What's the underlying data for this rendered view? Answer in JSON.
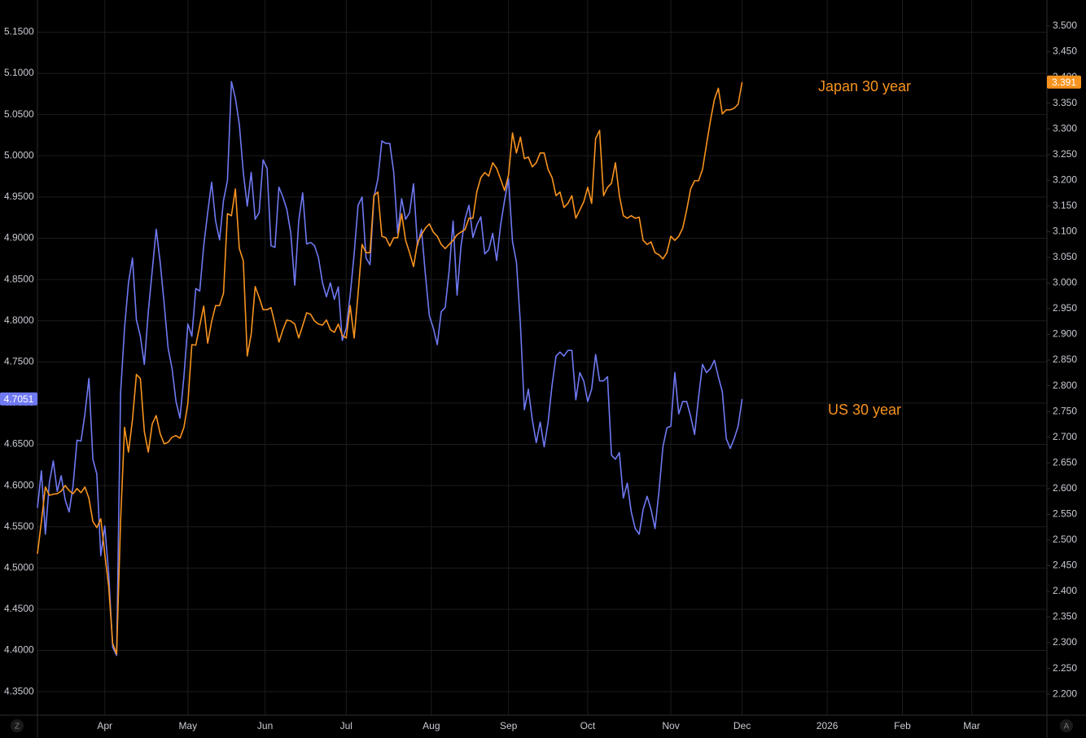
{
  "chart_data": {
    "type": "line",
    "xlim": [
      0,
      255
    ],
    "xticks": [
      {
        "value": 17,
        "label": "Apr"
      },
      {
        "value": 38,
        "label": "May"
      },
      {
        "value": 57.5,
        "label": "Jun"
      },
      {
        "value": 78,
        "label": "Jul"
      },
      {
        "value": 99.5,
        "label": "Aug"
      },
      {
        "value": 119,
        "label": "Sep"
      },
      {
        "value": 139,
        "label": "Oct"
      },
      {
        "value": 160,
        "label": "Nov"
      },
      {
        "value": 178,
        "label": "Dec"
      },
      {
        "value": 199.5,
        "label": "2026"
      },
      {
        "value": 218.5,
        "label": "Feb"
      },
      {
        "value": 236,
        "label": "Mar"
      }
    ],
    "ylim": [
      4.3215,
      5.189
    ],
    "yticks": [
      {
        "value": 4.35,
        "label": "4.3500"
      },
      {
        "value": 4.4,
        "label": "4.4000"
      },
      {
        "value": 4.45,
        "label": "4.4500"
      },
      {
        "value": 4.5,
        "label": "4.5000"
      },
      {
        "value": 4.55,
        "label": "4.5500"
      },
      {
        "value": 4.6,
        "label": "4.6000"
      },
      {
        "value": 4.65,
        "label": "4.6500"
      },
      {
        "value": 4.7,
        "label": "4.7000"
      },
      {
        "value": 4.75,
        "label": "4.7500"
      },
      {
        "value": 4.8,
        "label": "4.8000"
      },
      {
        "value": 4.85,
        "label": "4.8500"
      },
      {
        "value": 4.9,
        "label": "4.9000"
      },
      {
        "value": 4.95,
        "label": "4.9500"
      },
      {
        "value": 5.0,
        "label": "5.0000"
      },
      {
        "value": 5.05,
        "label": "5.0500"
      },
      {
        "value": 5.1,
        "label": "5.1000"
      },
      {
        "value": 5.15,
        "label": "5.1500"
      }
    ],
    "y2lim": [
      2.159,
      3.5507
    ],
    "y2ticks": [
      {
        "value": 2.2,
        "label": "2.200"
      },
      {
        "value": 2.25,
        "label": "2.250"
      },
      {
        "value": 2.3,
        "label": "2.300"
      },
      {
        "value": 2.35,
        "label": "2.350"
      },
      {
        "value": 2.4,
        "label": "2.400"
      },
      {
        "value": 2.45,
        "label": "2.450"
      },
      {
        "value": 2.5,
        "label": "2.500"
      },
      {
        "value": 2.55,
        "label": "2.550"
      },
      {
        "value": 2.6,
        "label": "2.600"
      },
      {
        "value": 2.65,
        "label": "2.650"
      },
      {
        "value": 2.7,
        "label": "2.700"
      },
      {
        "value": 2.75,
        "label": "2.750"
      },
      {
        "value": 2.8,
        "label": "2.800"
      },
      {
        "value": 2.85,
        "label": "2.850"
      },
      {
        "value": 2.9,
        "label": "2.900"
      },
      {
        "value": 2.95,
        "label": "2.950"
      },
      {
        "value": 3.0,
        "label": "3.000"
      },
      {
        "value": 3.05,
        "label": "3.050"
      },
      {
        "value": 3.1,
        "label": "3.100"
      },
      {
        "value": 3.15,
        "label": "3.150"
      },
      {
        "value": 3.2,
        "label": "3.200"
      },
      {
        "value": 3.25,
        "label": "3.250"
      },
      {
        "value": 3.3,
        "label": "3.300"
      },
      {
        "value": 3.35,
        "label": "3.350"
      },
      {
        "value": 3.4,
        "label": "3.400"
      },
      {
        "value": 3.45,
        "label": "3.450"
      },
      {
        "value": 3.5,
        "label": "3.500"
      }
    ],
    "grid": true,
    "annotation_color": "#f7931e",
    "series": [
      {
        "name": "US 30 year",
        "color": "#6f79f2",
        "axis": "y",
        "values": [
          4.573,
          4.618,
          4.541,
          4.603,
          4.63,
          4.593,
          4.612,
          4.583,
          4.568,
          4.6,
          4.655,
          4.654,
          4.687,
          4.73,
          4.632,
          4.614,
          4.515,
          4.551,
          4.493,
          4.404,
          4.394,
          4.712,
          4.791,
          4.846,
          4.876,
          4.801,
          4.781,
          4.747,
          4.811,
          4.861,
          4.911,
          4.871,
          4.821,
          4.767,
          4.742,
          4.702,
          4.682,
          4.732,
          4.796,
          4.781,
          4.839,
          4.836,
          4.891,
          4.931,
          4.968,
          4.921,
          4.898,
          4.946,
          4.97,
          5.09,
          5.07,
          5.038,
          4.98,
          4.939,
          4.98,
          4.923,
          4.931,
          4.995,
          4.985,
          4.891,
          4.889,
          4.962,
          4.95,
          4.935,
          4.906,
          4.843,
          4.921,
          4.955,
          4.893,
          4.895,
          4.891,
          4.876,
          4.846,
          4.829,
          4.846,
          4.826,
          4.841,
          4.776,
          4.791,
          4.831,
          4.881,
          4.94,
          4.95,
          4.876,
          4.868,
          4.95,
          4.972,
          5.018,
          5.015,
          5.015,
          4.98,
          4.906,
          4.948,
          4.923,
          4.931,
          4.966,
          4.891,
          4.911,
          4.856,
          4.806,
          4.791,
          4.771,
          4.811,
          4.816,
          4.861,
          4.921,
          4.831,
          4.891,
          4.923,
          4.94,
          4.901,
          4.916,
          4.926,
          4.881,
          4.886,
          4.906,
          4.873,
          4.916,
          4.946,
          4.972,
          4.896,
          4.871,
          4.796,
          4.692,
          4.717,
          4.68,
          4.652,
          4.677,
          4.647,
          4.677,
          4.722,
          4.757,
          4.762,
          4.757,
          4.764,
          4.764,
          4.704,
          4.737,
          4.727,
          4.702,
          4.717,
          4.759,
          4.727,
          4.727,
          4.732,
          4.637,
          4.632,
          4.64,
          4.585,
          4.603,
          4.568,
          4.548,
          4.541,
          4.571,
          4.587,
          4.571,
          4.548,
          4.593,
          4.647,
          4.67,
          4.672,
          4.737,
          4.687,
          4.702,
          4.702,
          4.684,
          4.662,
          4.707,
          4.747,
          4.737,
          4.742,
          4.752,
          4.732,
          4.714,
          4.657,
          4.645,
          4.657,
          4.672,
          4.7051
        ]
      },
      {
        "name": "Japan 30 year",
        "color": "#f7931e",
        "axis": "y2",
        "values": [
          2.473,
          2.536,
          2.603,
          2.587,
          2.589,
          2.59,
          2.595,
          2.606,
          2.596,
          2.59,
          2.6,
          2.592,
          2.603,
          2.581,
          2.536,
          2.524,
          2.541,
          2.473,
          2.409,
          2.299,
          2.278,
          2.536,
          2.719,
          2.671,
          2.734,
          2.822,
          2.814,
          2.711,
          2.671,
          2.726,
          2.742,
          2.707,
          2.687,
          2.69,
          2.7,
          2.703,
          2.698,
          2.719,
          2.766,
          2.88,
          2.879,
          2.917,
          2.955,
          2.883,
          2.925,
          2.956,
          2.956,
          2.98,
          3.135,
          3.131,
          3.183,
          3.067,
          3.043,
          2.858,
          2.901,
          2.993,
          2.972,
          2.948,
          2.948,
          2.952,
          2.92,
          2.885,
          2.909,
          2.928,
          2.926,
          2.92,
          2.893,
          2.917,
          2.942,
          2.939,
          2.926,
          2.92,
          2.918,
          2.928,
          2.909,
          2.904,
          2.92,
          2.898,
          2.893,
          2.956,
          2.893,
          2.98,
          3.075,
          3.059,
          3.059,
          3.17,
          3.177,
          3.091,
          3.088,
          3.072,
          3.088,
          3.088,
          3.135,
          3.083,
          3.059,
          3.032,
          3.078,
          3.094,
          3.107,
          3.115,
          3.099,
          3.091,
          3.075,
          3.067,
          3.075,
          3.083,
          3.094,
          3.099,
          3.104,
          3.126,
          3.126,
          3.178,
          3.205,
          3.215,
          3.208,
          3.234,
          3.223,
          3.202,
          3.18,
          3.21,
          3.292,
          3.253,
          3.284,
          3.242,
          3.245,
          3.226,
          3.234,
          3.253,
          3.253,
          3.221,
          3.205,
          3.17,
          3.177,
          3.147,
          3.155,
          3.17,
          3.126,
          3.142,
          3.158,
          3.186,
          3.155,
          3.281,
          3.297,
          3.17,
          3.186,
          3.194,
          3.234,
          3.17,
          3.131,
          3.126,
          3.131,
          3.126,
          3.128,
          3.083,
          3.075,
          3.08,
          3.059,
          3.055,
          3.047,
          3.059,
          3.091,
          3.083,
          3.091,
          3.107,
          3.142,
          3.183,
          3.199,
          3.199,
          3.221,
          3.269,
          3.316,
          3.357,
          3.379,
          3.329,
          3.337,
          3.337,
          3.34,
          3.348,
          3.391
        ]
      }
    ]
  },
  "controls": [
    "Z",
    "A"
  ]
}
